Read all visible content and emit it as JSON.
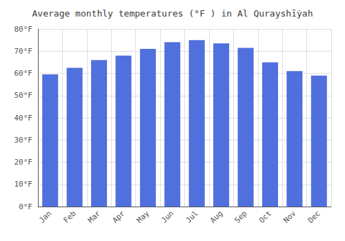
{
  "chart_data": {
    "type": "bar",
    "title": "Average monthly temperatures (°F ) in Al Qurayshī̇yah",
    "categories": [
      "Jan",
      "Feb",
      "Mar",
      "Apr",
      "May",
      "Jun",
      "Jul",
      "Aug",
      "Sep",
      "Oct",
      "Nov",
      "Dec"
    ],
    "values": [
      59.5,
      62.5,
      66.0,
      68.0,
      71.0,
      74.0,
      75.0,
      73.5,
      71.5,
      65.0,
      61.0,
      59.0
    ],
    "ylim": [
      0,
      80
    ],
    "yticks": [
      {
        "value": 0,
        "label": "0°F"
      },
      {
        "value": 10,
        "label": "10°F"
      },
      {
        "value": 20,
        "label": "20°F"
      },
      {
        "value": 30,
        "label": "30°F"
      },
      {
        "value": 40,
        "label": "40°F"
      },
      {
        "value": 50,
        "label": "50°F"
      },
      {
        "value": 60,
        "label": "60°F"
      },
      {
        "value": 70,
        "label": "70°F"
      },
      {
        "value": 80,
        "label": "80°F"
      }
    ],
    "grid": true
  }
}
